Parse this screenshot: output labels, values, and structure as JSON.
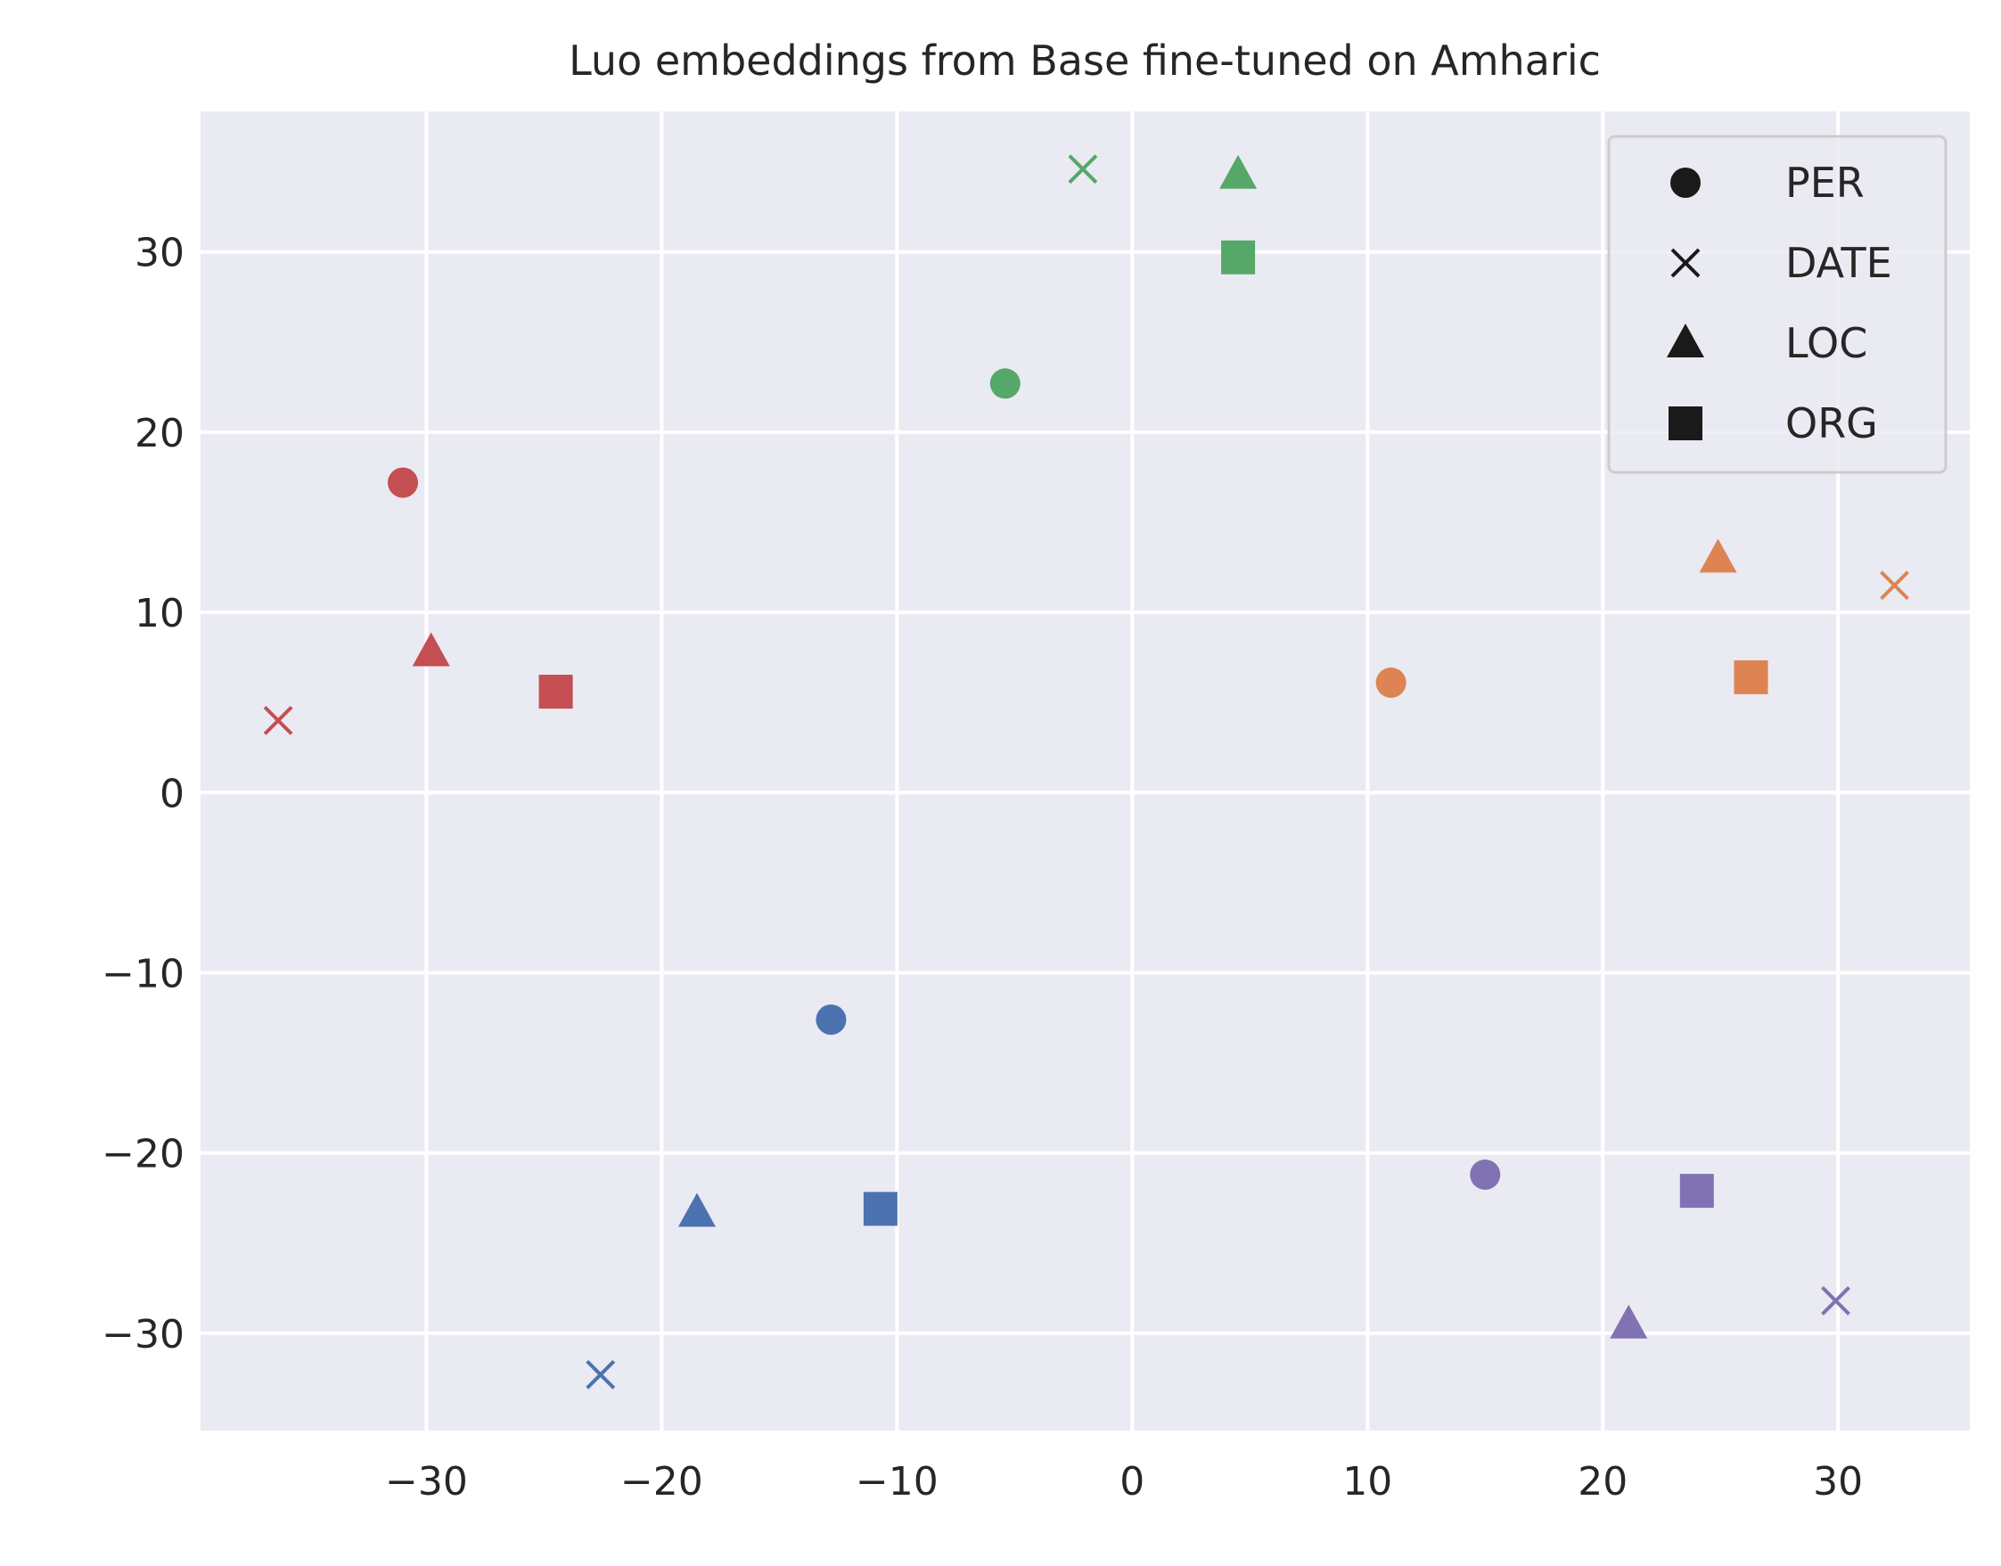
{
  "chart_data": {
    "type": "scatter",
    "title": "Luo embeddings from Base fine-tuned on Amharic",
    "xlabel": "",
    "ylabel": "",
    "xlim": [
      -39.6,
      35.6
    ],
    "ylim": [
      -35.4,
      37.8
    ],
    "xticks": [
      -30,
      -20,
      -10,
      0,
      10,
      20,
      30
    ],
    "yticks": [
      -30,
      -20,
      -10,
      0,
      10,
      20,
      30
    ],
    "xtick_labels": [
      "−30",
      "−20",
      "−10",
      "0",
      "10",
      "20",
      "30"
    ],
    "ytick_labels": [
      "−30",
      "−20",
      "−10",
      "0",
      "10",
      "20",
      "30"
    ],
    "grid": true,
    "background": "#EAEAF2",
    "legend": {
      "placement": "top-right",
      "entries": [
        {
          "marker": "circle",
          "label": "PER"
        },
        {
          "marker": "x",
          "label": "DATE"
        },
        {
          "marker": "triangle",
          "label": "LOC"
        },
        {
          "marker": "square",
          "label": "ORG"
        }
      ]
    },
    "colors": {
      "blue": "#4C72B0",
      "orange": "#DD8452",
      "green": "#55A868",
      "red": "#C44E52",
      "purple": "#8172B3"
    },
    "points": [
      {
        "x": -31.0,
        "y": 17.2,
        "marker": "circle",
        "color": "red"
      },
      {
        "x": -36.3,
        "y": 4.0,
        "marker": "x",
        "color": "red"
      },
      {
        "x": -29.8,
        "y": 7.8,
        "marker": "triangle",
        "color": "red"
      },
      {
        "x": -24.5,
        "y": 5.6,
        "marker": "square",
        "color": "red"
      },
      {
        "x": -5.4,
        "y": 22.7,
        "marker": "circle",
        "color": "green"
      },
      {
        "x": -2.1,
        "y": 34.6,
        "marker": "x",
        "color": "green"
      },
      {
        "x": 4.5,
        "y": 34.3,
        "marker": "triangle",
        "color": "green"
      },
      {
        "x": 4.5,
        "y": 29.7,
        "marker": "square",
        "color": "green"
      },
      {
        "x": 11.0,
        "y": 6.1,
        "marker": "circle",
        "color": "orange"
      },
      {
        "x": 32.4,
        "y": 11.5,
        "marker": "x",
        "color": "orange"
      },
      {
        "x": 24.9,
        "y": 13.0,
        "marker": "triangle",
        "color": "orange"
      },
      {
        "x": 26.3,
        "y": 6.4,
        "marker": "square",
        "color": "orange"
      },
      {
        "x": -12.8,
        "y": -12.6,
        "marker": "circle",
        "color": "blue"
      },
      {
        "x": -22.6,
        "y": -32.3,
        "marker": "x",
        "color": "blue"
      },
      {
        "x": -18.5,
        "y": -23.3,
        "marker": "triangle",
        "color": "blue"
      },
      {
        "x": -10.7,
        "y": -23.1,
        "marker": "square",
        "color": "blue"
      },
      {
        "x": 15.0,
        "y": -21.2,
        "marker": "circle",
        "color": "purple"
      },
      {
        "x": 29.9,
        "y": -28.2,
        "marker": "x",
        "color": "purple"
      },
      {
        "x": 21.1,
        "y": -29.5,
        "marker": "triangle",
        "color": "purple"
      },
      {
        "x": 24.0,
        "y": -22.1,
        "marker": "square",
        "color": "purple"
      }
    ]
  }
}
